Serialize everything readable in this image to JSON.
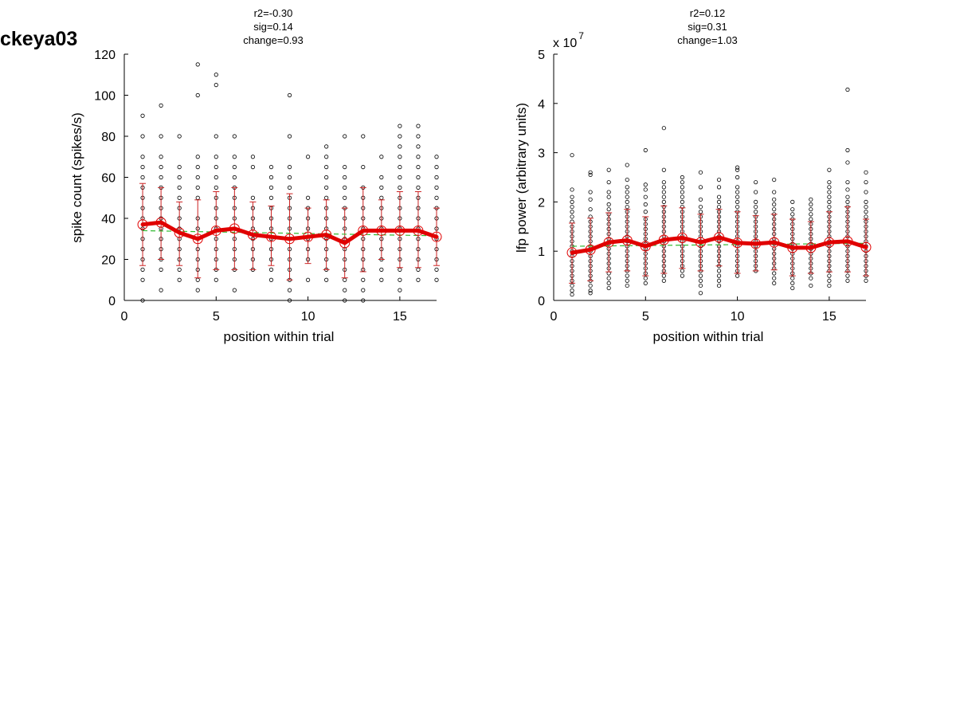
{
  "figure_label": "ckeya03",
  "colors": {
    "mean": "#e00000",
    "fit": "#33bb33",
    "points": "#000000",
    "errorbar": "#cc2222"
  },
  "chart_data": [
    {
      "type": "scatter",
      "stats": [
        "r2=-0.30",
        "sig=0.14",
        "change=0.93"
      ],
      "xlabel": "position within trial",
      "ylabel": "spike count (spikes/s)",
      "exponent_label": "",
      "xlim": [
        0,
        17
      ],
      "ylim": [
        0,
        120
      ],
      "xticks": [
        0,
        5,
        10,
        15
      ],
      "yticks": [
        0,
        20,
        40,
        60,
        80,
        100,
        120
      ],
      "x": [
        1,
        2,
        3,
        4,
        5,
        6,
        7,
        8,
        9,
        10,
        11,
        12,
        13,
        14,
        15,
        16,
        17
      ],
      "mean": [
        37,
        38,
        33,
        30,
        34,
        35,
        32,
        31,
        30,
        31,
        32,
        28,
        34,
        34,
        34,
        34,
        31
      ],
      "error_low": [
        17,
        20,
        17,
        11,
        15,
        15,
        15,
        17,
        10,
        18,
        15,
        11,
        14,
        20,
        16,
        16,
        17
      ],
      "error_high": [
        57,
        55,
        48,
        49,
        53,
        55,
        48,
        46,
        52,
        45,
        49,
        45,
        55,
        49,
        53,
        53,
        45
      ],
      "trend": [
        34.0,
        31.5
      ],
      "points": [
        [
          0,
          10,
          15,
          20,
          25,
          30,
          35,
          40,
          45,
          50,
          55,
          60,
          65,
          70,
          80,
          90
        ],
        [
          5,
          15,
          20,
          25,
          30,
          35,
          40,
          45,
          50,
          55,
          60,
          65,
          70,
          80,
          95
        ],
        [
          10,
          15,
          20,
          25,
          30,
          35,
          40,
          45,
          50,
          55,
          60,
          65,
          80
        ],
        [
          5,
          10,
          15,
          20,
          25,
          30,
          35,
          40,
          50,
          55,
          60,
          65,
          70,
          100,
          115
        ],
        [
          10,
          15,
          20,
          25,
          30,
          35,
          40,
          45,
          50,
          55,
          60,
          65,
          70,
          80,
          105,
          110
        ],
        [
          5,
          15,
          20,
          25,
          30,
          35,
          40,
          45,
          50,
          55,
          60,
          65,
          70,
          80
        ],
        [
          15,
          20,
          25,
          30,
          35,
          40,
          45,
          50,
          65,
          70
        ],
        [
          10,
          15,
          20,
          25,
          30,
          35,
          40,
          45,
          50,
          55,
          60,
          65
        ],
        [
          0,
          5,
          10,
          15,
          20,
          25,
          30,
          35,
          40,
          45,
          50,
          55,
          60,
          65,
          80,
          100
        ],
        [
          10,
          20,
          25,
          30,
          35,
          40,
          45,
          50,
          70
        ],
        [
          10,
          15,
          20,
          25,
          30,
          35,
          40,
          45,
          50,
          55,
          60,
          65,
          70,
          75
        ],
        [
          0,
          5,
          10,
          15,
          20,
          25,
          30,
          35,
          40,
          45,
          50,
          55,
          60,
          65,
          80
        ],
        [
          0,
          5,
          10,
          15,
          20,
          25,
          30,
          35,
          40,
          45,
          50,
          55,
          65,
          80
        ],
        [
          10,
          15,
          20,
          25,
          30,
          35,
          40,
          45,
          50,
          55,
          60,
          70
        ],
        [
          5,
          10,
          15,
          20,
          25,
          30,
          35,
          40,
          45,
          50,
          55,
          60,
          65,
          70,
          75,
          80,
          85
        ],
        [
          10,
          15,
          20,
          25,
          30,
          35,
          40,
          45,
          50,
          55,
          60,
          65,
          70,
          75,
          80,
          85
        ],
        [
          10,
          15,
          20,
          25,
          30,
          35,
          40,
          45,
          50,
          55,
          60,
          65,
          70
        ]
      ]
    },
    {
      "type": "scatter",
      "stats": [
        "r2=0.12",
        "sig=0.31",
        "change=1.03"
      ],
      "xlabel": "position within trial",
      "ylabel": "lfp power (arbitrary units)",
      "exponent_label": "x 10",
      "exponent_power": "7",
      "xlim": [
        0,
        17
      ],
      "ylim": [
        0,
        5
      ],
      "xticks": [
        0,
        5,
        10,
        15
      ],
      "yticks": [
        0,
        1,
        2,
        3,
        4,
        5
      ],
      "x": [
        1,
        2,
        3,
        4,
        5,
        6,
        7,
        8,
        9,
        10,
        11,
        12,
        13,
        14,
        15,
        16,
        17
      ],
      "mean": [
        0.97,
        1.03,
        1.18,
        1.22,
        1.1,
        1.23,
        1.27,
        1.18,
        1.28,
        1.17,
        1.15,
        1.18,
        1.07,
        1.07,
        1.18,
        1.2,
        1.08
      ],
      "error_low": [
        0.35,
        0.4,
        0.58,
        0.6,
        0.5,
        0.55,
        0.65,
        0.6,
        0.7,
        0.55,
        0.6,
        0.62,
        0.5,
        0.55,
        0.58,
        0.58,
        0.5
      ],
      "error_high": [
        1.57,
        1.67,
        1.78,
        1.85,
        1.7,
        1.92,
        1.88,
        1.75,
        1.85,
        1.8,
        1.72,
        1.75,
        1.65,
        1.6,
        1.8,
        1.9,
        1.65
      ],
      "trend": [
        1.1,
        1.16
      ],
      "points": [
        [
          0.12,
          0.2,
          0.3,
          0.4,
          0.5,
          0.6,
          0.7,
          0.8,
          0.9,
          1.0,
          1.1,
          1.2,
          1.3,
          1.4,
          1.5,
          1.6,
          1.7,
          1.8,
          1.9,
          2.0,
          2.1,
          2.25,
          2.95
        ],
        [
          0.15,
          0.2,
          0.3,
          0.4,
          0.5,
          0.6,
          0.7,
          0.8,
          0.9,
          1.0,
          1.1,
          1.2,
          1.3,
          1.4,
          1.5,
          1.6,
          1.7,
          1.85,
          2.05,
          2.2,
          2.55,
          2.6
        ],
        [
          0.25,
          0.35,
          0.45,
          0.55,
          0.65,
          0.75,
          0.85,
          0.95,
          1.05,
          1.15,
          1.25,
          1.35,
          1.45,
          1.55,
          1.65,
          1.75,
          1.85,
          1.95,
          2.1,
          2.2,
          2.4,
          2.65
        ],
        [
          0.3,
          0.4,
          0.5,
          0.6,
          0.7,
          0.8,
          0.9,
          1.0,
          1.1,
          1.2,
          1.3,
          1.4,
          1.5,
          1.6,
          1.7,
          1.8,
          1.9,
          2.0,
          2.1,
          2.2,
          2.3,
          2.45,
          2.75
        ],
        [
          0.35,
          0.45,
          0.55,
          0.65,
          0.75,
          0.85,
          0.95,
          1.05,
          1.15,
          1.25,
          1.35,
          1.45,
          1.55,
          1.65,
          1.8,
          1.95,
          2.1,
          2.25,
          2.35,
          3.05
        ],
        [
          0.4,
          0.5,
          0.6,
          0.7,
          0.8,
          0.9,
          1.0,
          1.1,
          1.2,
          1.3,
          1.4,
          1.5,
          1.6,
          1.7,
          1.8,
          1.9,
          2.0,
          2.1,
          2.2,
          2.3,
          2.4,
          2.65,
          3.5
        ],
        [
          0.5,
          0.6,
          0.7,
          0.8,
          0.9,
          1.0,
          1.1,
          1.2,
          1.3,
          1.4,
          1.5,
          1.6,
          1.7,
          1.8,
          1.9,
          2.0,
          2.1,
          2.2,
          2.3,
          2.4,
          2.5
        ],
        [
          0.15,
          0.3,
          0.4,
          0.5,
          0.6,
          0.7,
          0.8,
          0.9,
          1.0,
          1.1,
          1.2,
          1.3,
          1.4,
          1.5,
          1.6,
          1.7,
          1.8,
          1.9,
          2.05,
          2.3,
          2.6
        ],
        [
          0.3,
          0.4,
          0.5,
          0.6,
          0.7,
          0.8,
          0.9,
          1.0,
          1.1,
          1.2,
          1.3,
          1.4,
          1.5,
          1.6,
          1.7,
          1.8,
          1.9,
          2.0,
          2.1,
          2.3,
          2.45
        ],
        [
          0.5,
          0.6,
          0.7,
          0.8,
          0.9,
          1.0,
          1.1,
          1.2,
          1.3,
          1.4,
          1.5,
          1.6,
          1.7,
          1.8,
          1.9,
          2.0,
          2.1,
          2.2,
          2.3,
          2.5,
          2.65,
          2.7
        ],
        [
          0.6,
          0.7,
          0.8,
          0.9,
          1.0,
          1.1,
          1.2,
          1.3,
          1.4,
          1.5,
          1.6,
          1.7,
          1.8,
          1.9,
          2.0,
          2.2,
          2.4
        ],
        [
          0.35,
          0.45,
          0.55,
          0.65,
          0.75,
          0.85,
          0.95,
          1.05,
          1.15,
          1.25,
          1.35,
          1.45,
          1.55,
          1.65,
          1.75,
          1.85,
          1.95,
          2.05,
          2.2,
          2.45
        ],
        [
          0.25,
          0.35,
          0.45,
          0.55,
          0.65,
          0.75,
          0.85,
          0.95,
          1.05,
          1.15,
          1.25,
          1.35,
          1.45,
          1.55,
          1.65,
          1.75,
          1.85,
          2.0
        ],
        [
          0.3,
          0.45,
          0.55,
          0.65,
          0.75,
          0.85,
          0.95,
          1.05,
          1.15,
          1.25,
          1.35,
          1.45,
          1.55,
          1.65,
          1.75,
          1.85,
          1.95,
          2.05
        ],
        [
          0.3,
          0.4,
          0.5,
          0.6,
          0.7,
          0.8,
          0.9,
          1.0,
          1.1,
          1.2,
          1.3,
          1.4,
          1.5,
          1.6,
          1.7,
          1.8,
          1.9,
          2.0,
          2.1,
          2.2,
          2.3,
          2.4,
          2.65
        ],
        [
          0.4,
          0.5,
          0.6,
          0.7,
          0.8,
          0.9,
          1.0,
          1.1,
          1.2,
          1.3,
          1.4,
          1.5,
          1.6,
          1.7,
          1.8,
          1.9,
          2.0,
          2.1,
          2.25,
          2.4,
          2.8,
          3.05,
          4.28
        ],
        [
          0.4,
          0.5,
          0.6,
          0.7,
          0.8,
          0.9,
          1.0,
          1.1,
          1.2,
          1.3,
          1.4,
          1.5,
          1.6,
          1.7,
          1.8,
          1.9,
          2.0,
          2.2,
          2.4,
          2.6
        ]
      ]
    }
  ]
}
